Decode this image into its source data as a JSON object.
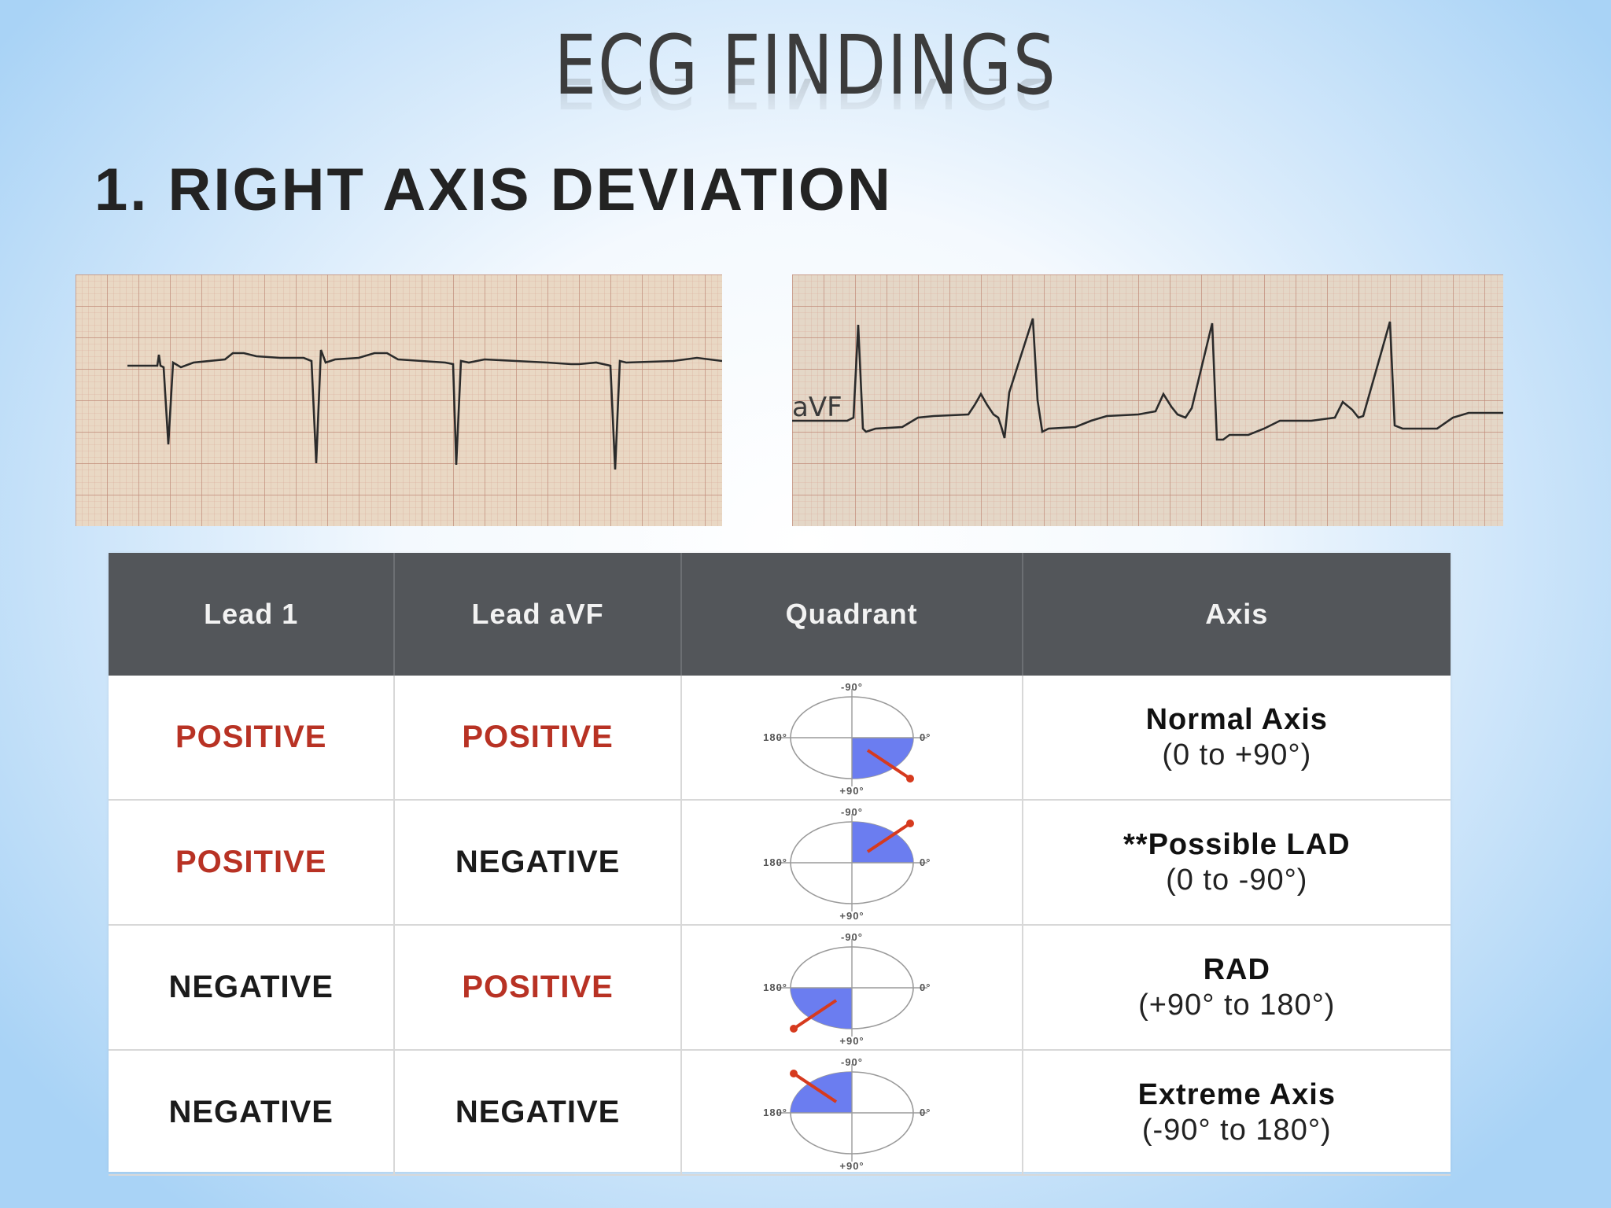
{
  "slide": {
    "title": "ECG FINDINGS",
    "subtitle": "1. RIGHT AXIS DEVIATION"
  },
  "ecg_strips": [
    {
      "lead_label": ""
    },
    {
      "lead_label": "aVF"
    }
  ],
  "table": {
    "headers": [
      "Lead 1",
      "Lead aVF",
      "Quadrant",
      "Axis"
    ],
    "rows": [
      {
        "lead1": "POSITIVE",
        "lead1_color": "#b83224",
        "avf": "POSITIVE",
        "avf_color": "#b83224",
        "quadrant": "lower-right",
        "axis": "Normal Axis",
        "range": "(0 to +90°)"
      },
      {
        "lead1": "POSITIVE",
        "lead1_color": "#b83224",
        "avf": "NEGATIVE",
        "avf_color": "#1b1b1b",
        "quadrant": "upper-right",
        "axis": "**Possible LAD",
        "range": "(0 to -90°)"
      },
      {
        "lead1": "NEGATIVE",
        "lead1_color": "#1b1b1b",
        "avf": "POSITIVE",
        "avf_color": "#b83224",
        "quadrant": "lower-left",
        "axis": "RAD",
        "range": "(+90° to 180°)"
      },
      {
        "lead1": "NEGATIVE",
        "lead1_color": "#1b1b1b",
        "avf": "NEGATIVE",
        "avf_color": "#1b1b1b",
        "quadrant": "upper-left",
        "axis": "Extreme Axis",
        "range": "(-90° to 180°)"
      }
    ],
    "dial_labels": {
      "top": "-90°",
      "bottom": "+90°",
      "left": "180°",
      "right": "0°"
    },
    "colors": {
      "header_bg": "#53565a",
      "positive": "#b83224",
      "negative": "#1b1b1b",
      "quadrant_fill": "#6b7df0",
      "arrow": "#d63a1e"
    }
  }
}
